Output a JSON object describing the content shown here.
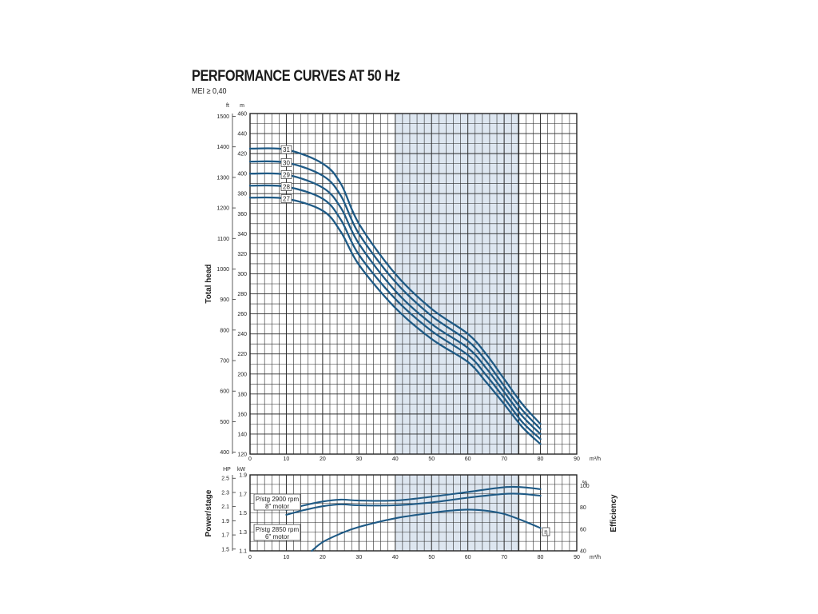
{
  "header": {
    "title": "PERFORMANCE CURVES AT 50 Hz",
    "subtitle": "MEI ≥ 0,40"
  },
  "colors": {
    "curve": "#1f5a85",
    "band": "#dde6f0",
    "grid": "#2a2a2a"
  },
  "chart_data": [
    {
      "type": "line",
      "name": "head",
      "xlabel": "m³/h",
      "ylabel": "Total head",
      "y_unit_left": "m",
      "y_unit_far_left": "ft",
      "xlim": [
        0,
        90
      ],
      "ylim": [
        120,
        460
      ],
      "x_ticks": [
        0,
        10,
        20,
        30,
        40,
        50,
        60,
        70,
        80,
        90
      ],
      "y_ticks": [
        120,
        140,
        160,
        180,
        200,
        220,
        240,
        260,
        280,
        300,
        320,
        340,
        360,
        380,
        400,
        420,
        440,
        460
      ],
      "ft_ticks": [
        400,
        500,
        600,
        700,
        800,
        900,
        1000,
        1100,
        1200,
        1300,
        1400,
        1500
      ],
      "grid": true,
      "recommended_range": [
        40,
        74
      ],
      "series": [
        {
          "name": "31",
          "x": [
            0,
            10,
            20,
            25,
            30,
            40,
            50,
            60,
            65,
            70,
            75,
            80
          ],
          "y": [
            425,
            424,
            410,
            390,
            350,
            300,
            265,
            240,
            220,
            195,
            170,
            150
          ]
        },
        {
          "name": "30",
          "x": [
            0,
            10,
            20,
            25,
            30,
            40,
            50,
            60,
            65,
            70,
            75,
            80
          ],
          "y": [
            412,
            411,
            398,
            378,
            340,
            292,
            258,
            233,
            213,
            188,
            164,
            145
          ]
        },
        {
          "name": "29",
          "x": [
            0,
            10,
            20,
            25,
            30,
            40,
            50,
            60,
            65,
            70,
            75,
            80
          ],
          "y": [
            400,
            399,
            386,
            366,
            330,
            283,
            250,
            226,
            206,
            182,
            158,
            140
          ]
        },
        {
          "name": "28",
          "x": [
            0,
            10,
            20,
            25,
            30,
            40,
            50,
            60,
            65,
            70,
            75,
            80
          ],
          "y": [
            388,
            387,
            375,
            354,
            319,
            275,
            243,
            219,
            199,
            176,
            152,
            135
          ]
        },
        {
          "name": "27",
          "x": [
            0,
            10,
            20,
            25,
            30,
            40,
            50,
            60,
            65,
            70,
            75,
            80
          ],
          "y": [
            376,
            375,
            363,
            342,
            309,
            266,
            235,
            212,
            192,
            170,
            147,
            130
          ]
        }
      ]
    },
    {
      "type": "line",
      "name": "power-efficiency",
      "xlabel": "m³/h",
      "ylabel_left": "Power/stage",
      "ylabel_right": "Efficiency",
      "y_unit_left": "kW",
      "y_unit_far_left": "HP",
      "y_unit_right": "%",
      "xlim": [
        0,
        90
      ],
      "ylim_kw": [
        1.1,
        1.9
      ],
      "kw_ticks": [
        "1.1",
        "1.3",
        "1.5",
        "1.7",
        "1.9"
      ],
      "hp_ticks": [
        "1.5",
        "1.7",
        "1.9",
        "2.1",
        "2.3",
        "2.5"
      ],
      "eff_ticks": [
        40,
        60,
        80,
        100
      ],
      "ylim_eff": [
        40,
        110
      ],
      "x_ticks": [
        0,
        10,
        20,
        30,
        40,
        50,
        60,
        70,
        80,
        90
      ],
      "grid": true,
      "recommended_range": [
        40,
        74
      ],
      "annotations": [
        {
          "line1": "P/stg 2900 rpm",
          "line2": "8\" motor"
        },
        {
          "line1": "P/stg 2850 rpm",
          "line2": "6\" motor"
        }
      ],
      "efficiency_label": "η",
      "series": [
        {
          "name": "P/stg 2900 rpm 8\" motor",
          "axis": "kw",
          "x": [
            10,
            15,
            20,
            25,
            30,
            40,
            50,
            60,
            70,
            75,
            80
          ],
          "y": [
            1.53,
            1.58,
            1.62,
            1.64,
            1.63,
            1.63,
            1.67,
            1.72,
            1.77,
            1.77,
            1.75
          ]
        },
        {
          "name": "P/stg 2850 rpm 6\" motor",
          "axis": "kw",
          "x": [
            10,
            15,
            20,
            25,
            30,
            40,
            50,
            60,
            70,
            75,
            80
          ],
          "y": [
            1.48,
            1.53,
            1.57,
            1.59,
            1.58,
            1.58,
            1.61,
            1.66,
            1.7,
            1.7,
            1.68
          ]
        },
        {
          "name": "Efficiency",
          "axis": "eff",
          "x": [
            17,
            20,
            25,
            30,
            40,
            50,
            55,
            60,
            65,
            70,
            75,
            80
          ],
          "y": [
            40,
            48,
            56,
            62,
            70,
            75,
            77,
            78,
            77,
            74,
            68,
            61
          ]
        }
      ]
    }
  ]
}
